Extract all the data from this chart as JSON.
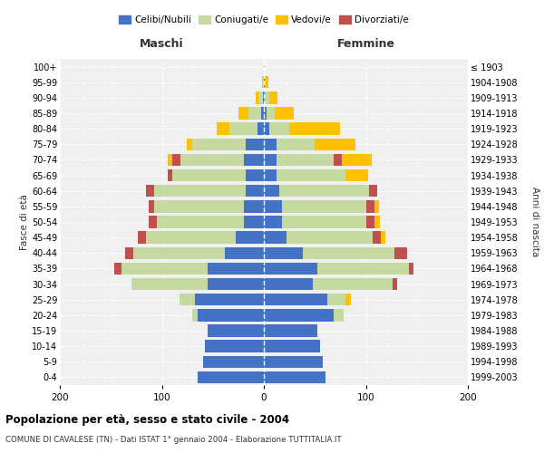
{
  "age_groups": [
    "0-4",
    "5-9",
    "10-14",
    "15-19",
    "20-24",
    "25-29",
    "30-34",
    "35-39",
    "40-44",
    "45-49",
    "50-54",
    "55-59",
    "60-64",
    "65-69",
    "70-74",
    "75-79",
    "80-84",
    "85-89",
    "90-94",
    "95-99",
    "100+"
  ],
  "birth_years": [
    "1999-2003",
    "1994-1998",
    "1989-1993",
    "1984-1988",
    "1979-1983",
    "1974-1978",
    "1969-1973",
    "1964-1968",
    "1959-1963",
    "1954-1958",
    "1949-1953",
    "1944-1948",
    "1939-1943",
    "1934-1938",
    "1929-1933",
    "1924-1928",
    "1919-1923",
    "1914-1918",
    "1909-1913",
    "1904-1908",
    "≤ 1903"
  ],
  "maschi": {
    "celibi": [
      65,
      60,
      58,
      55,
      65,
      68,
      55,
      55,
      38,
      28,
      20,
      20,
      18,
      18,
      20,
      18,
      6,
      3,
      1,
      0,
      0
    ],
    "coniugati": [
      0,
      0,
      0,
      0,
      5,
      15,
      75,
      85,
      90,
      88,
      85,
      88,
      90,
      72,
      62,
      52,
      28,
      12,
      4,
      1,
      0
    ],
    "vedovi": [
      0,
      0,
      0,
      0,
      0,
      0,
      0,
      0,
      0,
      0,
      0,
      0,
      0,
      0,
      4,
      6,
      12,
      10,
      3,
      1,
      0
    ],
    "divorziati": [
      0,
      0,
      0,
      0,
      0,
      0,
      0,
      7,
      8,
      8,
      8,
      5,
      8,
      4,
      8,
      0,
      0,
      0,
      0,
      0,
      0
    ]
  },
  "femmine": {
    "nubili": [
      60,
      58,
      55,
      52,
      68,
      62,
      48,
      52,
      38,
      22,
      18,
      18,
      15,
      12,
      12,
      12,
      5,
      3,
      1,
      1,
      0
    ],
    "coniugate": [
      0,
      0,
      0,
      0,
      10,
      18,
      78,
      90,
      90,
      85,
      82,
      82,
      88,
      68,
      56,
      38,
      20,
      8,
      4,
      0,
      0
    ],
    "vedove": [
      0,
      0,
      0,
      0,
      0,
      5,
      0,
      0,
      0,
      4,
      6,
      5,
      0,
      22,
      30,
      40,
      50,
      18,
      8,
      3,
      1
    ],
    "divorziate": [
      0,
      0,
      0,
      0,
      0,
      0,
      5,
      5,
      12,
      8,
      8,
      8,
      8,
      0,
      8,
      0,
      0,
      0,
      0,
      0,
      0
    ]
  },
  "colors": {
    "celibi": "#4472c4",
    "coniugati": "#c5d9a0",
    "vedovi": "#ffc000",
    "divorziati": "#c0504d"
  },
  "title": "Popolazione per età, sesso e stato civile - 2004",
  "subtitle": "COMUNE DI CAVALESE (TN) - Dati ISTAT 1° gennaio 2004 - Elaborazione TUTTITALIA.IT",
  "xlabel_maschi": "Maschi",
  "xlabel_femmine": "Femmine",
  "ylabel_left": "Fasce di età",
  "ylabel_right": "Anni di nascita",
  "xlim": 200,
  "legend_labels": [
    "Celibi/Nubili",
    "Coniugati/e",
    "Vedovi/e",
    "Divorziati/e"
  ]
}
